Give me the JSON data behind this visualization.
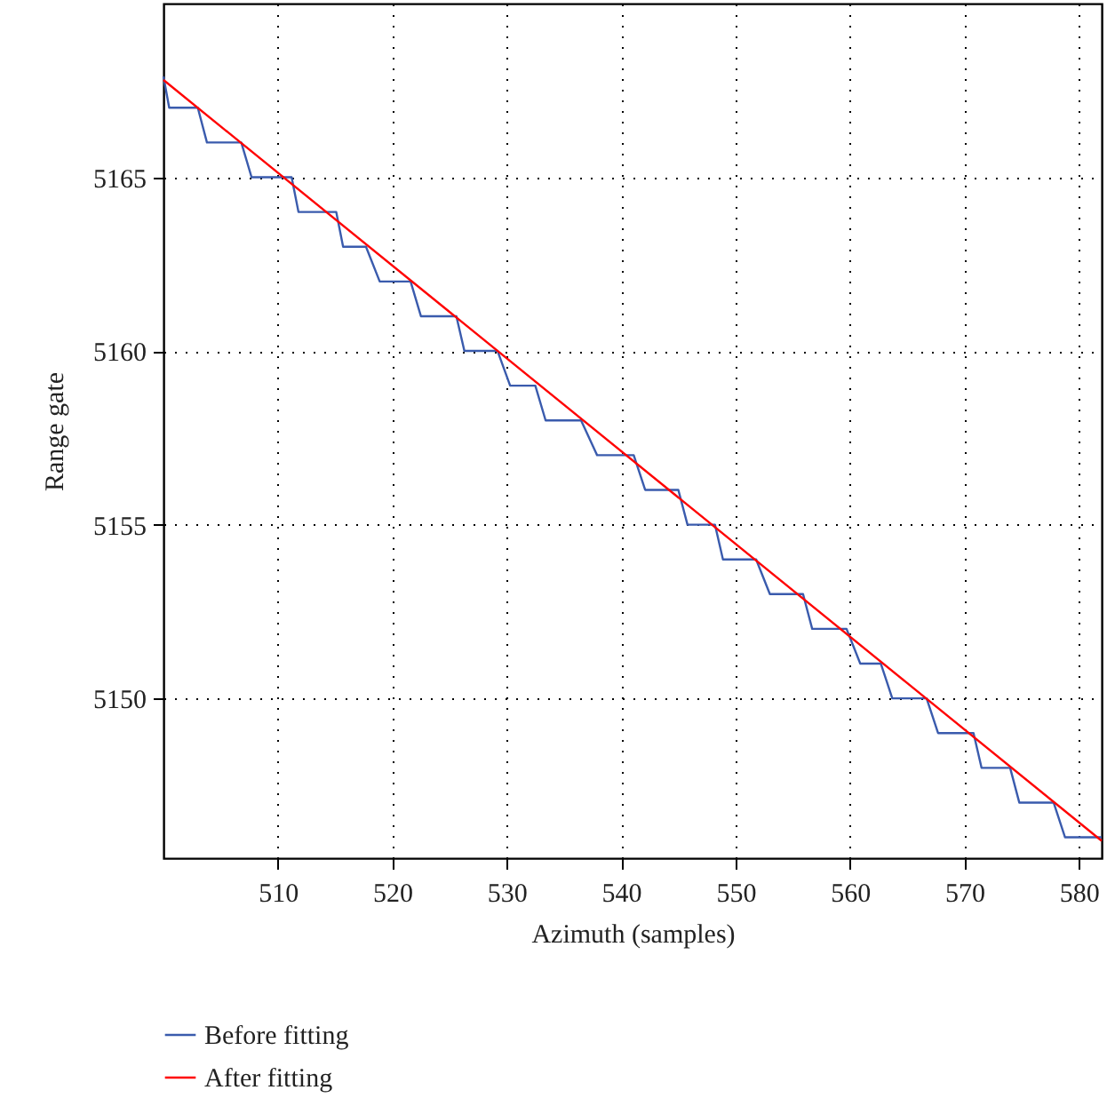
{
  "chart_data": {
    "type": "line",
    "xlabel": "Azimuth (samples)",
    "ylabel": "Range gate",
    "xlim": [
      500,
      582
    ],
    "ylim": [
      5145.4,
      5170
    ],
    "xticks": [
      510,
      520,
      530,
      540,
      550,
      560,
      570,
      580
    ],
    "yticks": [
      5150,
      5155,
      5160,
      5165
    ],
    "grid": true,
    "legend": "bottom",
    "series": [
      {
        "name": "Before fitting",
        "color": "#3a5bad",
        "x": [
          500,
          500.5,
          503,
          503.8,
          506.8,
          507.7,
          511.2,
          511.8,
          515.1,
          515.7,
          517.7,
          518.9,
          521.6,
          522.5,
          525.6,
          526.3,
          529.2,
          530.3,
          532.5,
          533.4,
          536.5,
          537.9,
          541.1,
          542.1,
          545,
          545.8,
          548.2,
          548.9,
          551.8,
          553,
          555.9,
          556.7,
          559.7,
          560.9,
          562.7,
          563.7,
          566.7,
          567.7,
          570.8,
          571.5,
          574,
          574.8,
          577.8,
          578.8,
          582
        ],
        "values": [
          5167.9,
          5167,
          5167,
          5166,
          5166,
          5165,
          5165,
          5164,
          5164,
          5163,
          5163,
          5162,
          5162,
          5161,
          5161,
          5160,
          5160,
          5159,
          5159,
          5158,
          5158,
          5157,
          5157,
          5156,
          5156,
          5155,
          5155,
          5154,
          5154,
          5153,
          5153,
          5152,
          5152,
          5151,
          5151,
          5150,
          5150,
          5149,
          5149,
          5148,
          5148,
          5147,
          5147,
          5146,
          5146
        ]
      },
      {
        "name": "After fitting",
        "color": "#ff0000",
        "x": [
          500,
          582
        ],
        "values": [
          5167.8,
          5145.9
        ]
      }
    ]
  }
}
